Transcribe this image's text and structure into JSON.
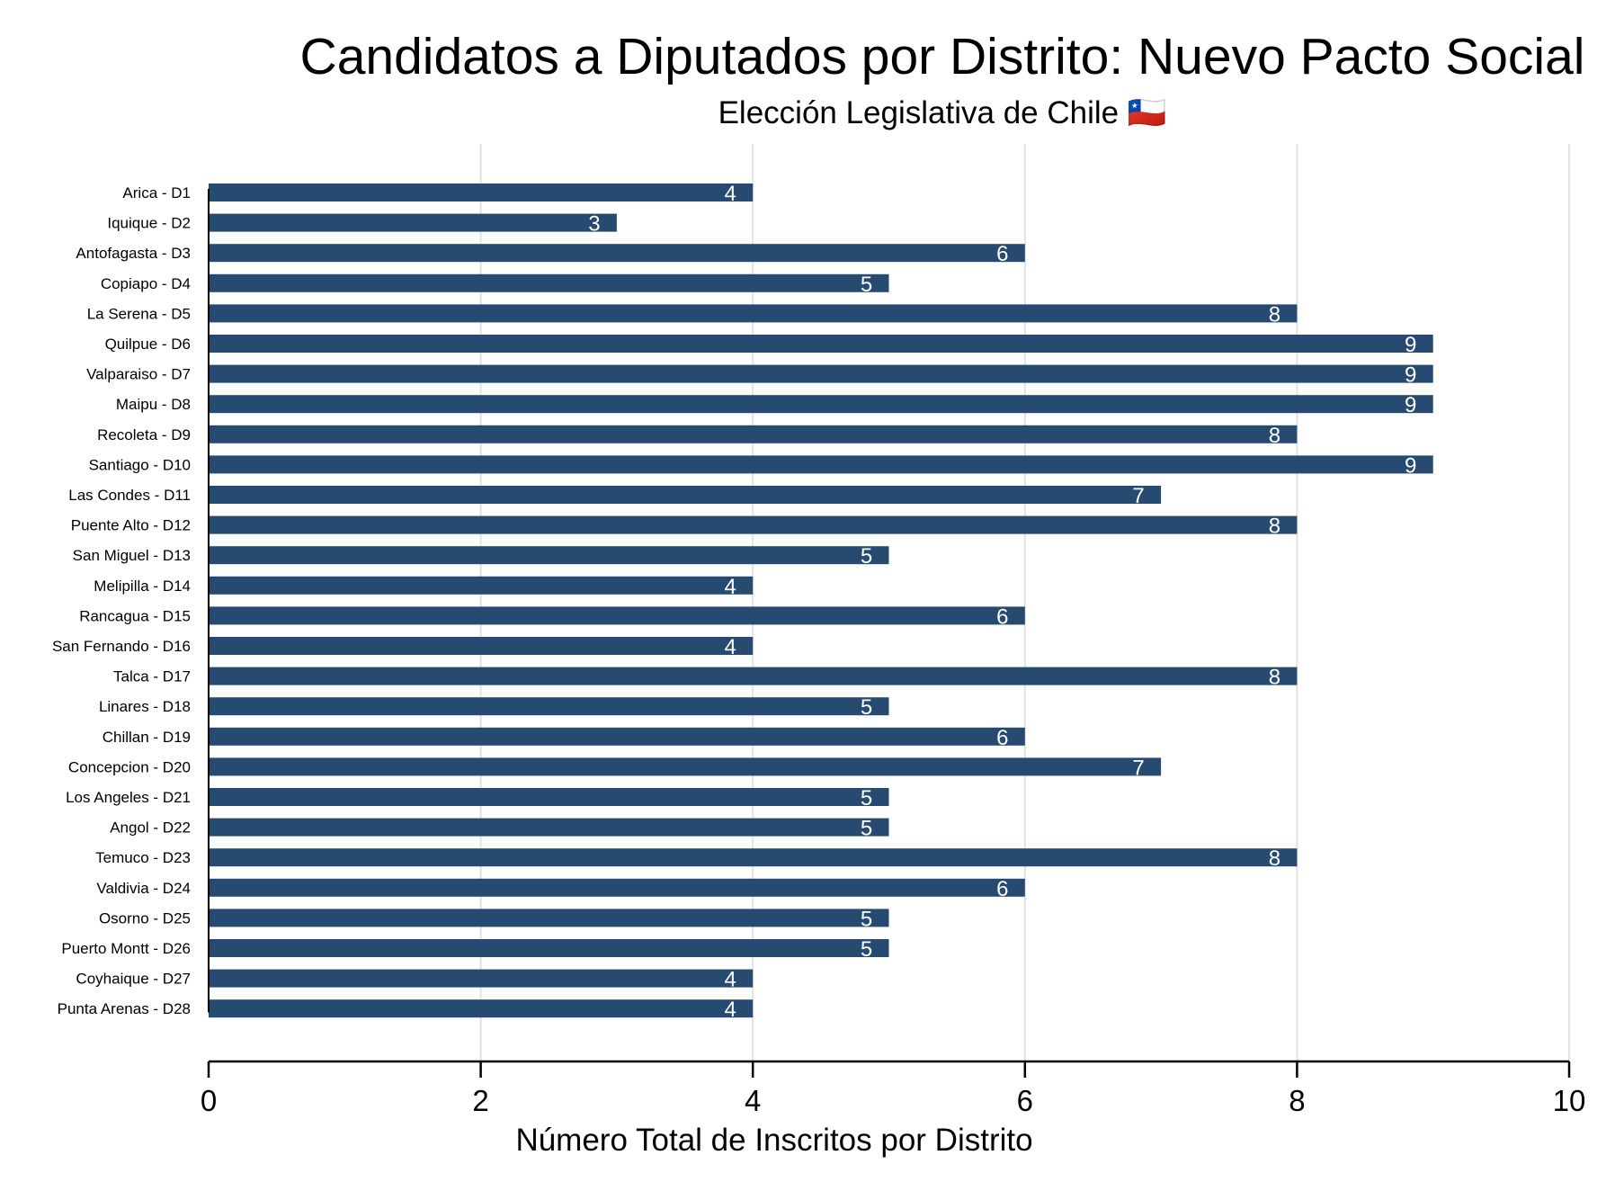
{
  "chart_data": {
    "type": "bar",
    "orientation": "horizontal",
    "title": "Candidatos a Diputados por Distrito: Nuevo Pacto Social",
    "subtitle": "Elección Legislativa de Chile 🇨🇱",
    "xlabel": "Número Total de Inscritos por Distrito",
    "ylabel": "",
    "xlim": [
      0,
      10
    ],
    "xticks": [
      0,
      2,
      4,
      6,
      8,
      10
    ],
    "grid": "vertical",
    "bar_color": "#264a70",
    "categories": [
      "Arica - D1",
      "Iquique - D2",
      "Antofagasta - D3",
      "Copiapo - D4",
      "La Serena - D5",
      "Quilpue - D6",
      "Valparaiso - D7",
      "Maipu - D8",
      "Recoleta - D9",
      "Santiago - D10",
      "Las Condes - D11",
      "Puente Alto - D12",
      "San Miguel - D13",
      "Melipilla - D14",
      "Rancagua - D15",
      "San Fernando - D16",
      "Talca - D17",
      "Linares - D18",
      "Chillan - D19",
      "Concepcion - D20",
      "Los Angeles - D21",
      "Angol - D22",
      "Temuco - D23",
      "Valdivia - D24",
      "Osorno - D25",
      "Puerto Montt - D26",
      "Coyhaique - D27",
      "Punta Arenas - D28"
    ],
    "values": [
      4,
      3,
      6,
      5,
      8,
      9,
      9,
      9,
      8,
      9,
      7,
      8,
      5,
      4,
      6,
      4,
      8,
      5,
      6,
      7,
      5,
      5,
      8,
      6,
      5,
      5,
      4,
      4
    ]
  }
}
